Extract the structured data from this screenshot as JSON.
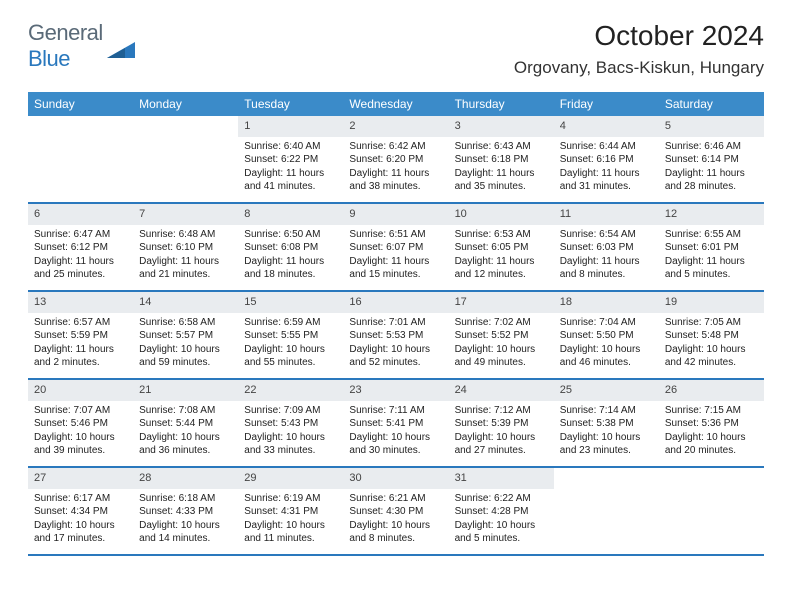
{
  "brand": {
    "first": "General",
    "second": "Blue"
  },
  "title": "October 2024",
  "location": "Orgovany, Bacs-Kiskun, Hungary",
  "colors": {
    "header_bg": "#3b8bc9",
    "header_text": "#ffffff",
    "daynum_bg": "#e9ecef",
    "row_border": "#2a78bd",
    "brand_gray": "#5a6a78",
    "brand_blue": "#2a78bd"
  },
  "day_names": [
    "Sunday",
    "Monday",
    "Tuesday",
    "Wednesday",
    "Thursday",
    "Friday",
    "Saturday"
  ],
  "weeks": [
    [
      {
        "n": "",
        "sr": "",
        "ss": "",
        "dl": ""
      },
      {
        "n": "",
        "sr": "",
        "ss": "",
        "dl": ""
      },
      {
        "n": "1",
        "sr": "Sunrise: 6:40 AM",
        "ss": "Sunset: 6:22 PM",
        "dl": "Daylight: 11 hours and 41 minutes."
      },
      {
        "n": "2",
        "sr": "Sunrise: 6:42 AM",
        "ss": "Sunset: 6:20 PM",
        "dl": "Daylight: 11 hours and 38 minutes."
      },
      {
        "n": "3",
        "sr": "Sunrise: 6:43 AM",
        "ss": "Sunset: 6:18 PM",
        "dl": "Daylight: 11 hours and 35 minutes."
      },
      {
        "n": "4",
        "sr": "Sunrise: 6:44 AM",
        "ss": "Sunset: 6:16 PM",
        "dl": "Daylight: 11 hours and 31 minutes."
      },
      {
        "n": "5",
        "sr": "Sunrise: 6:46 AM",
        "ss": "Sunset: 6:14 PM",
        "dl": "Daylight: 11 hours and 28 minutes."
      }
    ],
    [
      {
        "n": "6",
        "sr": "Sunrise: 6:47 AM",
        "ss": "Sunset: 6:12 PM",
        "dl": "Daylight: 11 hours and 25 minutes."
      },
      {
        "n": "7",
        "sr": "Sunrise: 6:48 AM",
        "ss": "Sunset: 6:10 PM",
        "dl": "Daylight: 11 hours and 21 minutes."
      },
      {
        "n": "8",
        "sr": "Sunrise: 6:50 AM",
        "ss": "Sunset: 6:08 PM",
        "dl": "Daylight: 11 hours and 18 minutes."
      },
      {
        "n": "9",
        "sr": "Sunrise: 6:51 AM",
        "ss": "Sunset: 6:07 PM",
        "dl": "Daylight: 11 hours and 15 minutes."
      },
      {
        "n": "10",
        "sr": "Sunrise: 6:53 AM",
        "ss": "Sunset: 6:05 PM",
        "dl": "Daylight: 11 hours and 12 minutes."
      },
      {
        "n": "11",
        "sr": "Sunrise: 6:54 AM",
        "ss": "Sunset: 6:03 PM",
        "dl": "Daylight: 11 hours and 8 minutes."
      },
      {
        "n": "12",
        "sr": "Sunrise: 6:55 AM",
        "ss": "Sunset: 6:01 PM",
        "dl": "Daylight: 11 hours and 5 minutes."
      }
    ],
    [
      {
        "n": "13",
        "sr": "Sunrise: 6:57 AM",
        "ss": "Sunset: 5:59 PM",
        "dl": "Daylight: 11 hours and 2 minutes."
      },
      {
        "n": "14",
        "sr": "Sunrise: 6:58 AM",
        "ss": "Sunset: 5:57 PM",
        "dl": "Daylight: 10 hours and 59 minutes."
      },
      {
        "n": "15",
        "sr": "Sunrise: 6:59 AM",
        "ss": "Sunset: 5:55 PM",
        "dl": "Daylight: 10 hours and 55 minutes."
      },
      {
        "n": "16",
        "sr": "Sunrise: 7:01 AM",
        "ss": "Sunset: 5:53 PM",
        "dl": "Daylight: 10 hours and 52 minutes."
      },
      {
        "n": "17",
        "sr": "Sunrise: 7:02 AM",
        "ss": "Sunset: 5:52 PM",
        "dl": "Daylight: 10 hours and 49 minutes."
      },
      {
        "n": "18",
        "sr": "Sunrise: 7:04 AM",
        "ss": "Sunset: 5:50 PM",
        "dl": "Daylight: 10 hours and 46 minutes."
      },
      {
        "n": "19",
        "sr": "Sunrise: 7:05 AM",
        "ss": "Sunset: 5:48 PM",
        "dl": "Daylight: 10 hours and 42 minutes."
      }
    ],
    [
      {
        "n": "20",
        "sr": "Sunrise: 7:07 AM",
        "ss": "Sunset: 5:46 PM",
        "dl": "Daylight: 10 hours and 39 minutes."
      },
      {
        "n": "21",
        "sr": "Sunrise: 7:08 AM",
        "ss": "Sunset: 5:44 PM",
        "dl": "Daylight: 10 hours and 36 minutes."
      },
      {
        "n": "22",
        "sr": "Sunrise: 7:09 AM",
        "ss": "Sunset: 5:43 PM",
        "dl": "Daylight: 10 hours and 33 minutes."
      },
      {
        "n": "23",
        "sr": "Sunrise: 7:11 AM",
        "ss": "Sunset: 5:41 PM",
        "dl": "Daylight: 10 hours and 30 minutes."
      },
      {
        "n": "24",
        "sr": "Sunrise: 7:12 AM",
        "ss": "Sunset: 5:39 PM",
        "dl": "Daylight: 10 hours and 27 minutes."
      },
      {
        "n": "25",
        "sr": "Sunrise: 7:14 AM",
        "ss": "Sunset: 5:38 PM",
        "dl": "Daylight: 10 hours and 23 minutes."
      },
      {
        "n": "26",
        "sr": "Sunrise: 7:15 AM",
        "ss": "Sunset: 5:36 PM",
        "dl": "Daylight: 10 hours and 20 minutes."
      }
    ],
    [
      {
        "n": "27",
        "sr": "Sunrise: 6:17 AM",
        "ss": "Sunset: 4:34 PM",
        "dl": "Daylight: 10 hours and 17 minutes."
      },
      {
        "n": "28",
        "sr": "Sunrise: 6:18 AM",
        "ss": "Sunset: 4:33 PM",
        "dl": "Daylight: 10 hours and 14 minutes."
      },
      {
        "n": "29",
        "sr": "Sunrise: 6:19 AM",
        "ss": "Sunset: 4:31 PM",
        "dl": "Daylight: 10 hours and 11 minutes."
      },
      {
        "n": "30",
        "sr": "Sunrise: 6:21 AM",
        "ss": "Sunset: 4:30 PM",
        "dl": "Daylight: 10 hours and 8 minutes."
      },
      {
        "n": "31",
        "sr": "Sunrise: 6:22 AM",
        "ss": "Sunset: 4:28 PM",
        "dl": "Daylight: 10 hours and 5 minutes."
      },
      {
        "n": "",
        "sr": "",
        "ss": "",
        "dl": ""
      },
      {
        "n": "",
        "sr": "",
        "ss": "",
        "dl": ""
      }
    ]
  ]
}
